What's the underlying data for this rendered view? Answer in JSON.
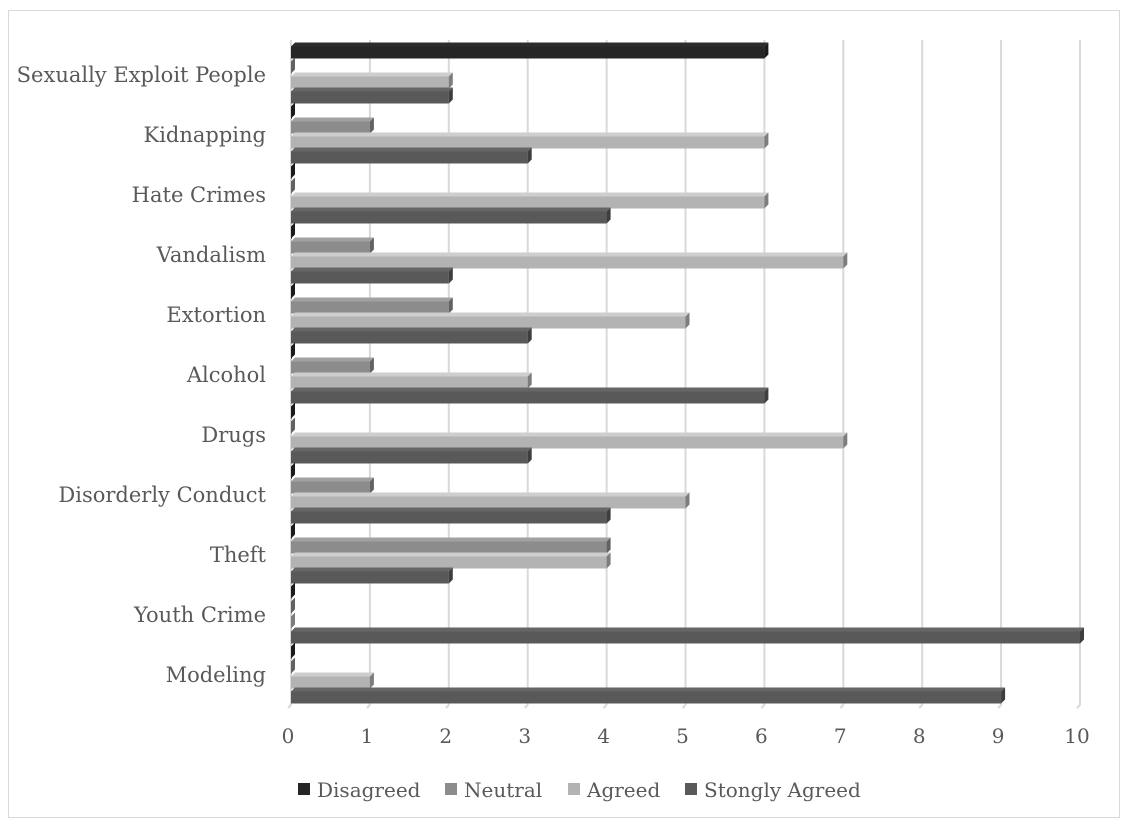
{
  "chart_data": {
    "type": "bar",
    "orientation": "horizontal",
    "style": "3d-clustered",
    "categories": [
      "Sexually Exploit People",
      "Kidnapping",
      "Hate Crimes",
      "Vandalism",
      "Extortion",
      "Alcohol",
      "Drugs",
      "Disorderly Conduct",
      "Theft",
      "Youth Crime",
      "Modeling"
    ],
    "series": [
      {
        "name": "Disagreed",
        "color": "#262626",
        "values": [
          6,
          0,
          0,
          0,
          0,
          0,
          0,
          0,
          0,
          0,
          0
        ]
      },
      {
        "name": "Neutral",
        "color": "#8c8c8c",
        "values": [
          0,
          1,
          0,
          1,
          2,
          1,
          0,
          1,
          4,
          0,
          0
        ]
      },
      {
        "name": "Agreed",
        "color": "#b3b3b3",
        "values": [
          2,
          6,
          6,
          7,
          5,
          3,
          7,
          5,
          4,
          0,
          1
        ]
      },
      {
        "name": "Stongly Agreed",
        "color": "#595959",
        "values": [
          2,
          3,
          4,
          2,
          3,
          6,
          3,
          4,
          2,
          10,
          9
        ]
      }
    ],
    "xlim": [
      0,
      10
    ],
    "xticks": [
      "0",
      "1",
      "2",
      "3",
      "4",
      "5",
      "6",
      "7",
      "8",
      "9",
      "10"
    ],
    "title": "",
    "xlabel": "",
    "ylabel": "",
    "grid": "vertical",
    "legend": "bottom"
  }
}
